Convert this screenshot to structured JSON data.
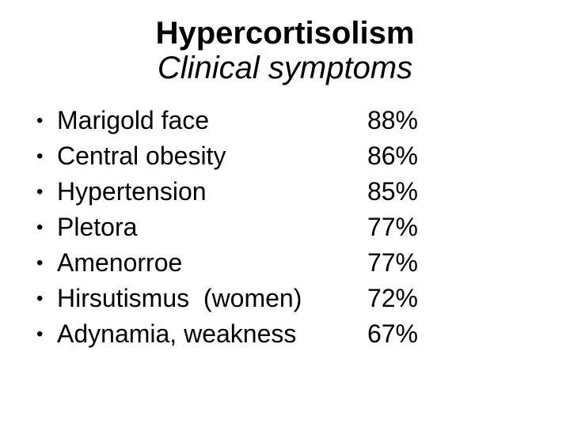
{
  "slide": {
    "title": "Hypercortisolism",
    "subtitle": "Clinical symptoms",
    "bullet_glyph": "•",
    "symptoms": [
      {
        "label": "Marigold face",
        "value": "88%"
      },
      {
        "label": "Central obesity",
        "value": "86%"
      },
      {
        "label": "Hypertension",
        "value": "85%"
      },
      {
        "label": "Pletora",
        "value": "77%"
      },
      {
        "label": "Amenorroe",
        "value": "77%"
      },
      {
        "label": "Hirsutismus  (women)",
        "value": "72%"
      },
      {
        "label": "Adynamia, weakness",
        "value": "67%"
      }
    ],
    "colors": {
      "background": "#ffffff",
      "text": "#000000"
    }
  }
}
